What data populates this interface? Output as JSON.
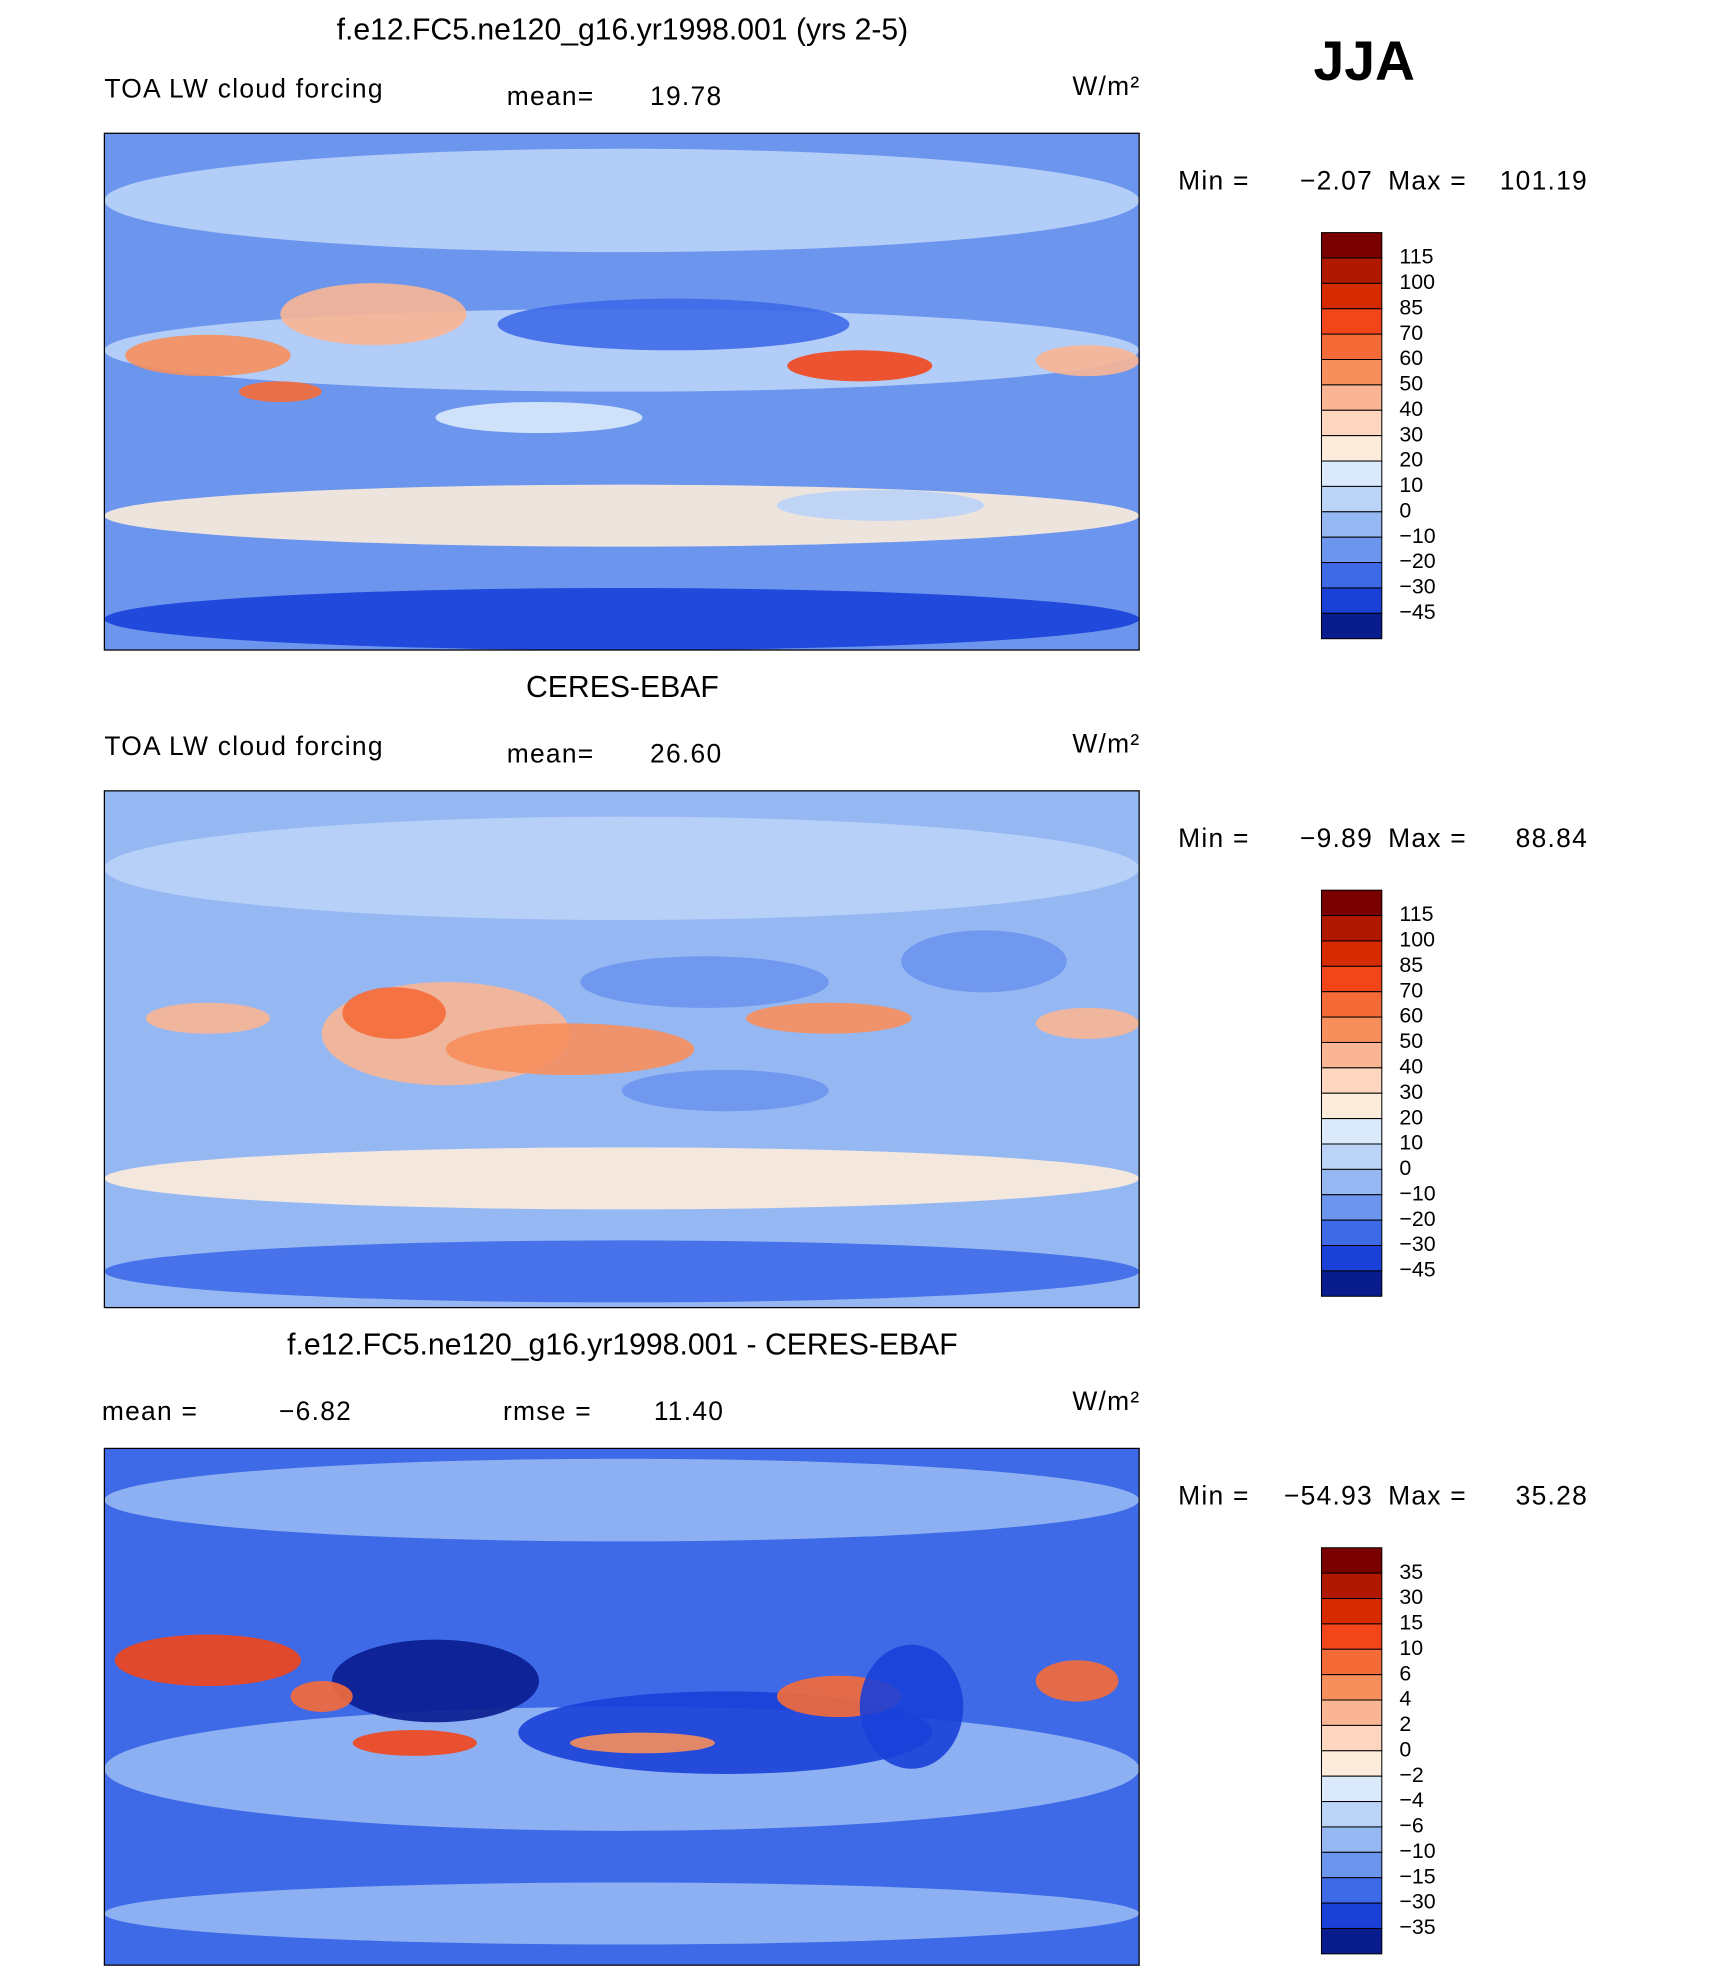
{
  "header": {
    "season": "JJA"
  },
  "colorbar_colors": [
    "#7a0000",
    "#b01800",
    "#d62a00",
    "#f2461a",
    "#f56b38",
    "#f78f5c",
    "#fab594",
    "#fcd6bf",
    "#fdecdc",
    "#dbeafb",
    "#bad3f7",
    "#95b8f3",
    "#6c95ee",
    "#3e6ae8",
    "#1a40d8",
    "#081c8e"
  ],
  "panels": [
    {
      "title": "f.e12.FC5.ne120_g16.yr1998.001 (yrs 2-5)",
      "left_label": "TOA LW cloud forcing",
      "stat1_label": "mean=",
      "stat1_value": "19.78",
      "units": "W/m²",
      "min_label": "Min =",
      "min_value": "−2.07",
      "max_label": "Max =",
      "max_value": "101.19",
      "colorbar_labels": [
        "115",
        "100",
        "85",
        "70",
        "60",
        "50",
        "40",
        "30",
        "20",
        "10",
        "0",
        "−10",
        "−20",
        "−30",
        "−45"
      ]
    },
    {
      "title": "CERES-EBAF",
      "left_label": "TOA LW cloud forcing",
      "stat1_label": "mean=",
      "stat1_value": "26.60",
      "units": "W/m²",
      "min_label": "Min =",
      "min_value": "−9.89",
      "max_label": "Max =",
      "max_value": "88.84",
      "colorbar_labels": [
        "115",
        "100",
        "85",
        "70",
        "60",
        "50",
        "40",
        "30",
        "20",
        "10",
        "0",
        "−10",
        "−20",
        "−30",
        "−45"
      ]
    },
    {
      "title": "f.e12.FC5.ne120_g16.yr1998.001 - CERES-EBAF",
      "stat1_label": "mean =",
      "stat1_value": "−6.82",
      "stat2_label": "rmse =",
      "stat2_value": "11.40",
      "units": "W/m²",
      "min_label": "Min =",
      "min_value": "−54.93",
      "max_label": "Max =",
      "max_value": "35.28",
      "colorbar_labels": [
        "35",
        "30",
        "15",
        "10",
        "6",
        "4",
        "2",
        "0",
        "−2",
        "−4",
        "−6",
        "−10",
        "−15",
        "−30",
        "−35"
      ]
    }
  ]
}
